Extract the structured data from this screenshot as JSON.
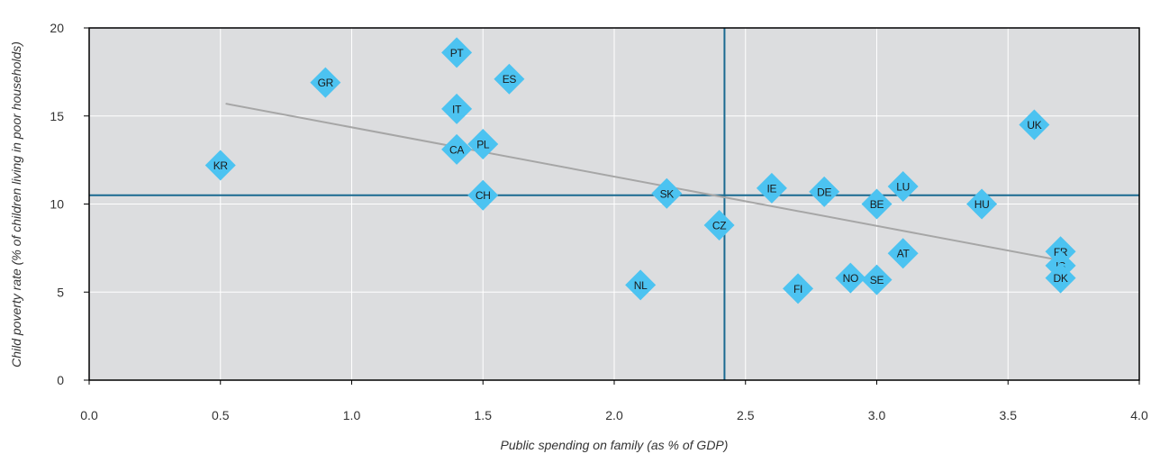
{
  "chart_data": {
    "type": "scatter",
    "title": "",
    "xlabel": "Public spending on family (as % of GDP)",
    "ylabel": "Child poverty rate (% of children living in poor households)",
    "xlim": [
      0,
      4.0
    ],
    "ylim": [
      0,
      20
    ],
    "x_ticks": [
      "0.0",
      "0.5",
      "1.0",
      "1.5",
      "2.0",
      "2.5",
      "3.0",
      "3.5",
      "4.0"
    ],
    "y_ticks": [
      "0",
      "5",
      "10",
      "15",
      "20"
    ],
    "grid": true,
    "points": [
      {
        "label": "KR",
        "x": 0.5,
        "y": 12.2
      },
      {
        "label": "GR",
        "x": 0.9,
        "y": 16.9
      },
      {
        "label": "PT",
        "x": 1.4,
        "y": 18.6
      },
      {
        "label": "IT",
        "x": 1.4,
        "y": 15.4
      },
      {
        "label": "CA",
        "x": 1.4,
        "y": 13.1
      },
      {
        "label": "ES",
        "x": 1.6,
        "y": 17.1
      },
      {
        "label": "PL",
        "x": 1.5,
        "y": 13.4
      },
      {
        "label": "CH",
        "x": 1.5,
        "y": 10.5
      },
      {
        "label": "NL",
        "x": 2.1,
        "y": 5.4
      },
      {
        "label": "SK",
        "x": 2.2,
        "y": 10.6
      },
      {
        "label": "CZ",
        "x": 2.4,
        "y": 8.8
      },
      {
        "label": "IE",
        "x": 2.6,
        "y": 10.9
      },
      {
        "label": "FI",
        "x": 2.7,
        "y": 5.2
      },
      {
        "label": "DE",
        "x": 2.8,
        "y": 10.7
      },
      {
        "label": "NO",
        "x": 2.9,
        "y": 5.8
      },
      {
        "label": "SE",
        "x": 3.0,
        "y": 5.7
      },
      {
        "label": "BE",
        "x": 3.0,
        "y": 10.0
      },
      {
        "label": "LU",
        "x": 3.1,
        "y": 11.0
      },
      {
        "label": "AT",
        "x": 3.1,
        "y": 7.2
      },
      {
        "label": "HU",
        "x": 3.4,
        "y": 10.0
      },
      {
        "label": "UK",
        "x": 3.6,
        "y": 14.5
      },
      {
        "label": "FR",
        "x": 3.7,
        "y": 7.3
      },
      {
        "label": "IS",
        "x": 3.7,
        "y": 6.5
      },
      {
        "label": "DK",
        "x": 3.7,
        "y": 5.8
      }
    ],
    "reference_lines": {
      "x_mean": 2.42,
      "y_mean": 10.5
    },
    "trend_line": {
      "x": [
        0.52,
        3.7
      ],
      "y": [
        15.7,
        6.8
      ]
    },
    "colors": {
      "plot_background": "#dcdddf",
      "grid": "#ffffff",
      "marker": "#4cc3f1",
      "reference_lines": "#1a6a91",
      "trend_line": "#a6a6a6",
      "frame": "#000000"
    }
  }
}
